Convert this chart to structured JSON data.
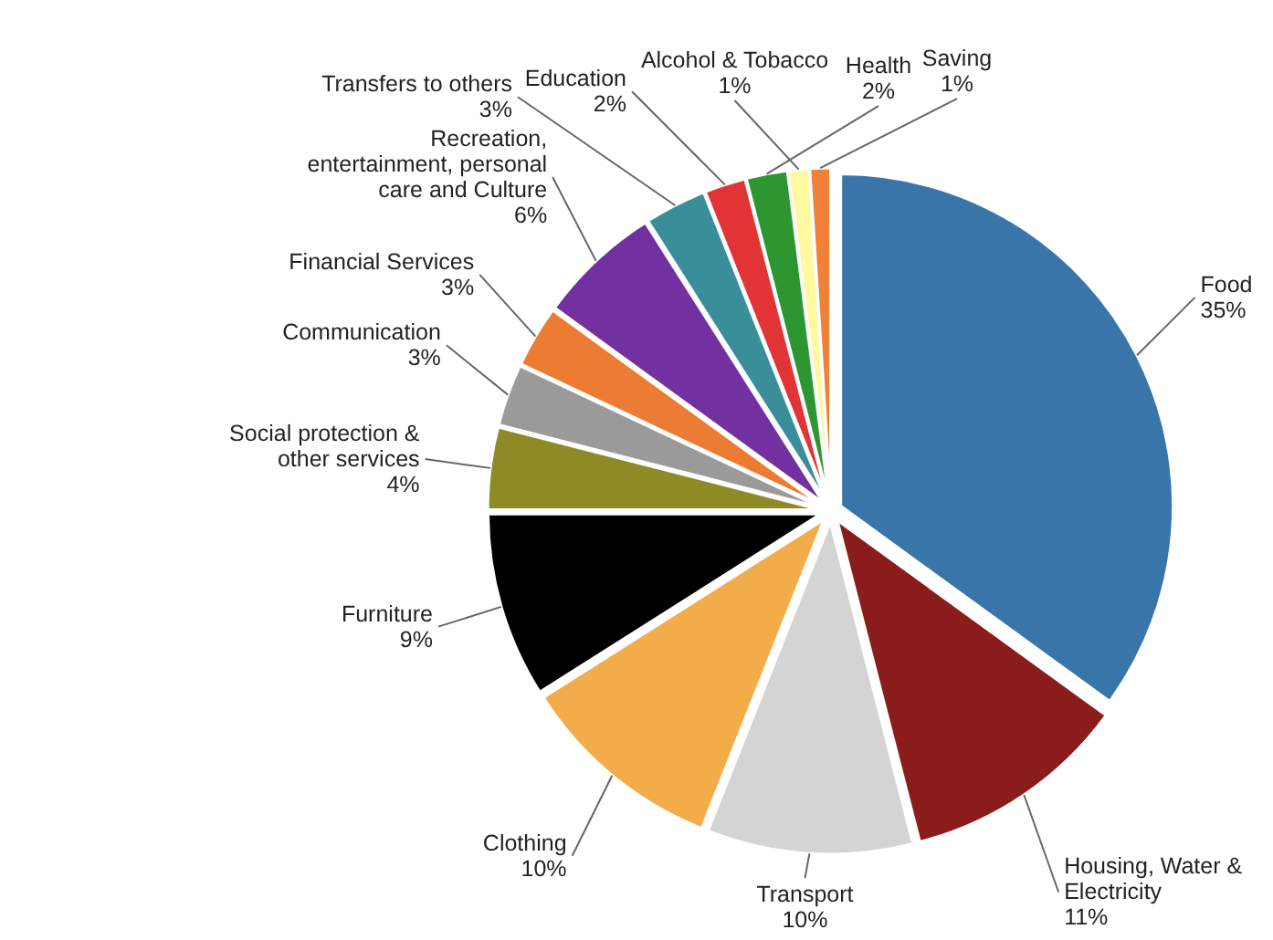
{
  "chart_data": {
    "type": "pie",
    "categories": [
      "Food",
      "Housing, Water & Electricity",
      "Transport",
      "Clothing",
      "Furniture",
      "Social protection & other services",
      "Communication",
      "Financial Services",
      "Recreation, entertainment, personal care and Culture",
      "Transfers to others",
      "Education",
      "Health",
      "Alcohol & Tobacco",
      "Saving"
    ],
    "values": [
      35,
      11,
      10,
      10,
      9,
      4,
      3,
      3,
      6,
      3,
      2,
      2,
      1,
      1
    ],
    "value_labels": [
      "35%",
      "11%",
      "10%",
      "10%",
      "9%",
      "4%",
      "3%",
      "3%",
      "6%",
      "3%",
      "2%",
      "2%",
      "1%",
      "1%"
    ],
    "colors": [
      "#3a75a9",
      "#8b1c1c",
      "#d4d4d4",
      "#f2ac4a",
      "#000000",
      "#8e8a25",
      "#9a9a9a",
      "#ec7c33",
      "#7230a0",
      "#3a8e99",
      "#e23434",
      "#2e9630",
      "#fffaa0",
      "#ef8138"
    ]
  }
}
